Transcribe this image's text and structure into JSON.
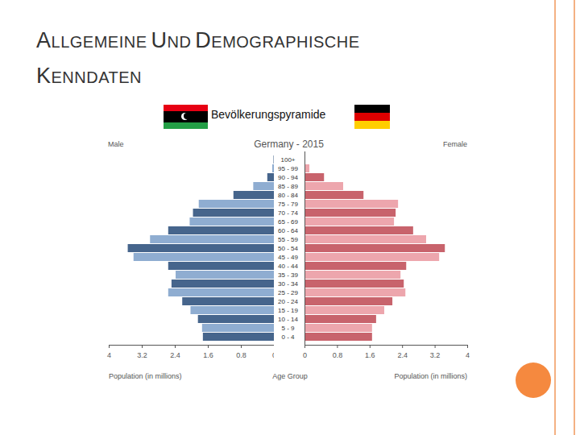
{
  "slide": {
    "heading": "ALLGEMEINE UND DEMOGRAPHISCHE KENNDATEN",
    "subheading": "Bevölkerungspyramide"
  },
  "chart_data": {
    "type": "bar",
    "orientation": "horizontal",
    "title": "Germany - 2015",
    "xlabel": "Population (in millions)",
    "ylabel": "Age Group",
    "categories": [
      "0 - 4",
      "5 - 9",
      "10 - 14",
      "15 - 19",
      "20 - 24",
      "25 - 29",
      "30 - 34",
      "35 - 39",
      "40 - 44",
      "45 - 49",
      "50 - 54",
      "55 - 59",
      "60 - 64",
      "65 - 69",
      "70 - 74",
      "75 - 79",
      "80 - 84",
      "85 - 89",
      "90 - 94",
      "95 - 99",
      "100+"
    ],
    "series": [
      {
        "name": "Male",
        "colors": [
          "#46658c",
          "#8fadd1",
          "#46658c",
          "#8fadd1",
          "#46658c",
          "#8fadd1",
          "#46658c",
          "#8fadd1",
          "#46658c",
          "#8fadd1",
          "#46658c",
          "#8fadd1",
          "#46658c",
          "#8fadd1",
          "#46658c",
          "#8fadd1",
          "#46658c",
          "#8fadd1",
          "#46658c",
          "#8fadd1",
          "#46658c"
        ],
        "values": [
          1.72,
          1.74,
          1.84,
          2.02,
          2.22,
          2.56,
          2.48,
          2.38,
          2.56,
          3.4,
          3.54,
          3.0,
          2.56,
          2.04,
          1.96,
          1.82,
          0.98,
          0.5,
          0.16,
          0.04,
          0.01
        ]
      },
      {
        "name": "Female",
        "colors": [
          "#c8636c",
          "#eda6ad",
          "#c8636c",
          "#eda6ad",
          "#c8636c",
          "#eda6ad",
          "#c8636c",
          "#eda6ad",
          "#c8636c",
          "#eda6ad",
          "#c8636c",
          "#eda6ad",
          "#c8636c",
          "#eda6ad",
          "#c8636c",
          "#eda6ad",
          "#c8636c",
          "#eda6ad",
          "#c8636c",
          "#eda6ad",
          "#c8636c"
        ],
        "values": [
          1.66,
          1.66,
          1.76,
          1.96,
          2.16,
          2.48,
          2.44,
          2.36,
          2.5,
          3.31,
          3.45,
          2.99,
          2.67,
          2.2,
          2.24,
          2.3,
          1.45,
          0.95,
          0.48,
          0.12,
          0.01
        ]
      }
    ],
    "xlim": [
      0,
      4
    ],
    "xticks": [
      0,
      0.8,
      1.6,
      2.4,
      3.2,
      4
    ]
  }
}
